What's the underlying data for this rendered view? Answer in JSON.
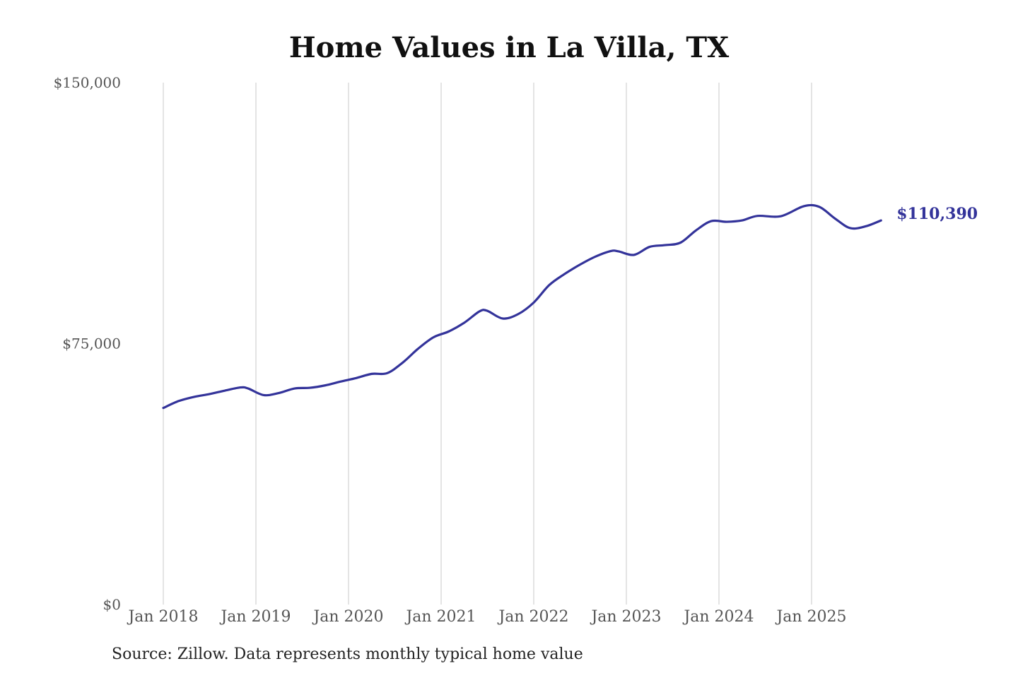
{
  "chart_data": {
    "type": "line",
    "title": "Home Values in La Villa, TX",
    "xlabel": "",
    "ylabel": "",
    "ylim": [
      0,
      150000
    ],
    "y_ticks": [
      {
        "value": 0,
        "label": "$0"
      },
      {
        "value": 75000,
        "label": "$75,000"
      },
      {
        "value": 150000,
        "label": "$150,000"
      }
    ],
    "x_ticks": [
      {
        "value": "2018-01",
        "label": "Jan 2018"
      },
      {
        "value": "2019-01",
        "label": "Jan 2019"
      },
      {
        "value": "2020-01",
        "label": "Jan 2020"
      },
      {
        "value": "2021-01",
        "label": "Jan 2021"
      },
      {
        "value": "2022-01",
        "label": "Jan 2022"
      },
      {
        "value": "2023-01",
        "label": "Jan 2023"
      },
      {
        "value": "2024-01",
        "label": "Jan 2024"
      },
      {
        "value": "2025-01",
        "label": "Jan 2025"
      }
    ],
    "grid": "vertical",
    "series": [
      {
        "color": "#33339a",
        "end_label": "$110,390",
        "points": [
          [
            "2018-01",
            56500
          ],
          [
            "2018-03",
            58500
          ],
          [
            "2018-05",
            59700
          ],
          [
            "2018-07",
            60500
          ],
          [
            "2018-09",
            61500
          ],
          [
            "2018-11",
            62400
          ],
          [
            "2018-12",
            62100
          ],
          [
            "2019-02",
            60200
          ],
          [
            "2019-04",
            60800
          ],
          [
            "2019-06",
            62100
          ],
          [
            "2019-08",
            62300
          ],
          [
            "2019-10",
            63000
          ],
          [
            "2019-12",
            64100
          ],
          [
            "2020-02",
            65100
          ],
          [
            "2020-04",
            66300
          ],
          [
            "2020-06",
            66500
          ],
          [
            "2020-08",
            69500
          ],
          [
            "2020-10",
            73500
          ],
          [
            "2020-12",
            76800
          ],
          [
            "2021-02",
            78500
          ],
          [
            "2021-04",
            81000
          ],
          [
            "2021-06",
            84300
          ],
          [
            "2021-07",
            84400
          ],
          [
            "2021-09",
            82200
          ],
          [
            "2021-11",
            83500
          ],
          [
            "2022-01",
            86800
          ],
          [
            "2022-03",
            91800
          ],
          [
            "2022-05",
            95000
          ],
          [
            "2022-07",
            97700
          ],
          [
            "2022-09",
            100000
          ],
          [
            "2022-11",
            101600
          ],
          [
            "2022-12",
            101500
          ],
          [
            "2023-02",
            100500
          ],
          [
            "2023-04",
            102800
          ],
          [
            "2023-06",
            103300
          ],
          [
            "2023-08",
            104000
          ],
          [
            "2023-10",
            107500
          ],
          [
            "2023-12",
            110200
          ],
          [
            "2024-02",
            110000
          ],
          [
            "2024-04",
            110400
          ],
          [
            "2024-06",
            111700
          ],
          [
            "2024-09",
            111600
          ],
          [
            "2024-12",
            114500
          ],
          [
            "2025-02",
            114300
          ],
          [
            "2025-04",
            111000
          ],
          [
            "2025-06",
            108200
          ],
          [
            "2025-08",
            108700
          ],
          [
            "2025-10",
            110390
          ]
        ]
      }
    ],
    "source": "Source: Zillow. Data represents monthly typical home value"
  }
}
